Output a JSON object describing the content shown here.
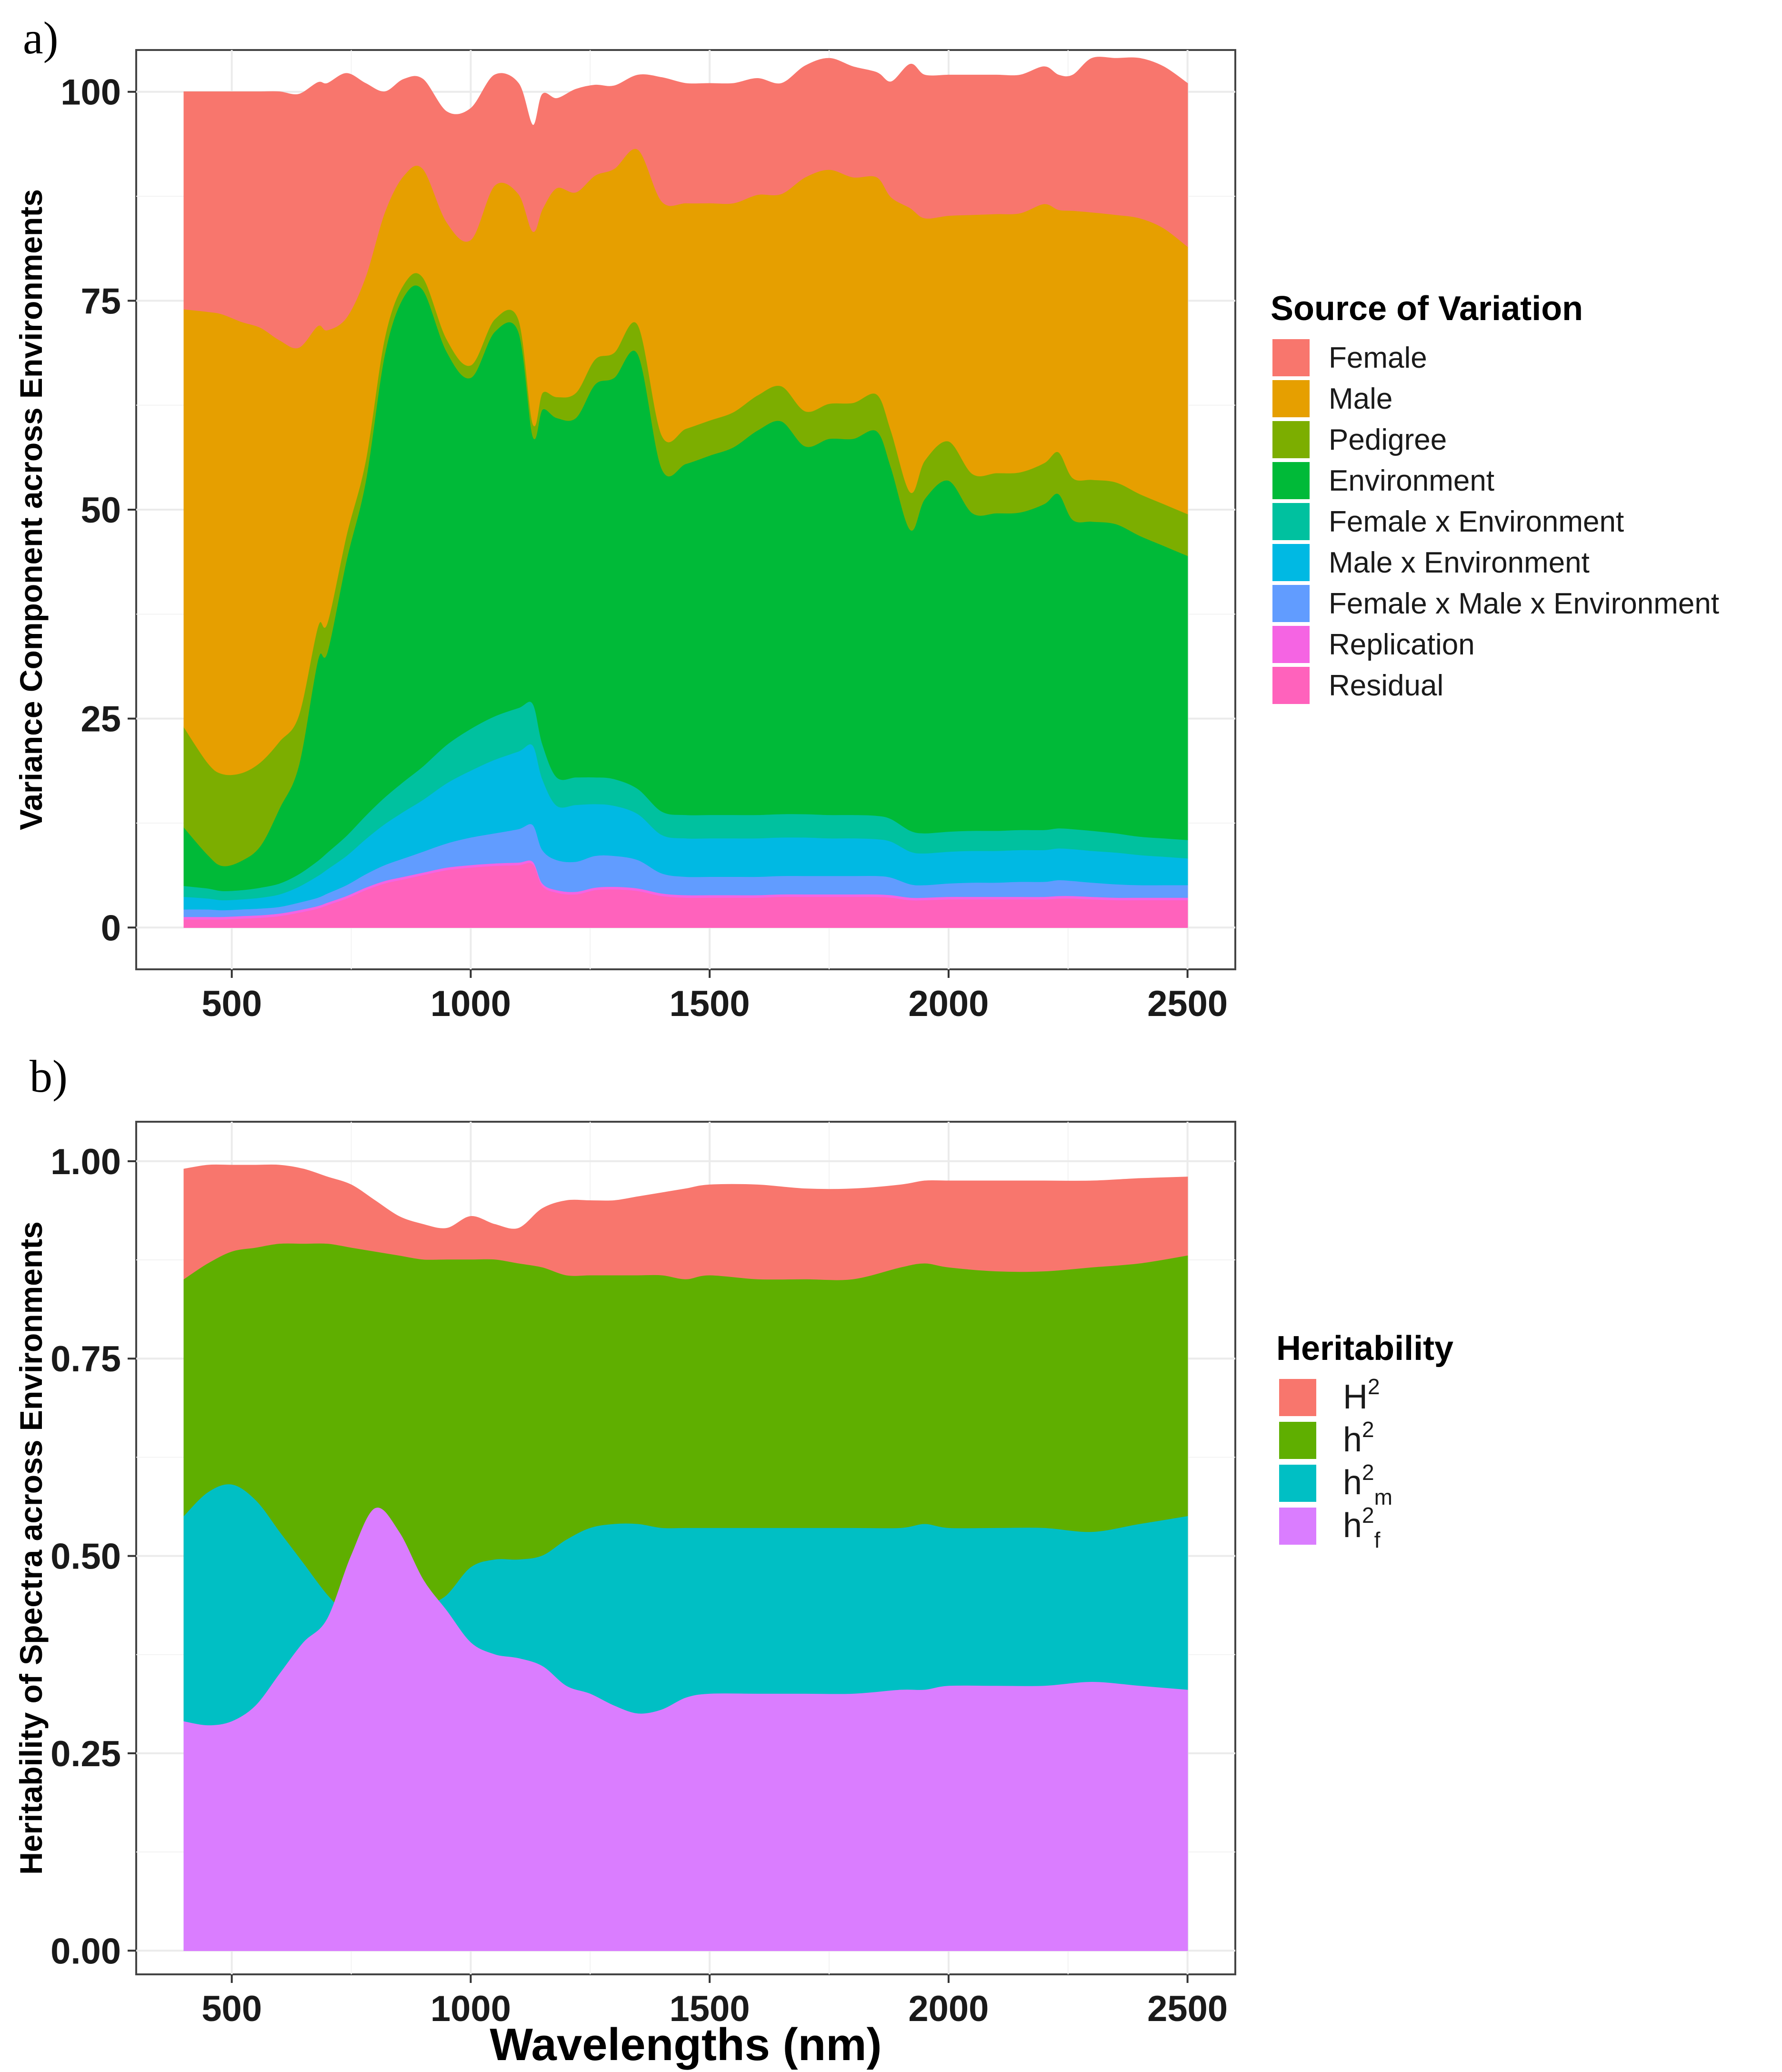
{
  "chart_data": [
    {
      "panel": "a)",
      "type": "area",
      "stacked": true,
      "xlabel": "",
      "ylabel": "Variance Component across Environments",
      "xlim": [
        300,
        2600
      ],
      "ylim": [
        -5,
        105
      ],
      "xticks": [
        500,
        1000,
        1500,
        2000,
        2500
      ],
      "yticks": [
        0,
        25,
        50,
        75,
        100
      ],
      "grid": true,
      "legend_title": "Source of Variation",
      "legend_position": "right",
      "x": [
        400,
        450,
        480,
        520,
        560,
        600,
        640,
        680,
        700,
        740,
        780,
        820,
        860,
        900,
        950,
        1000,
        1050,
        1100,
        1130,
        1150,
        1180,
        1220,
        1260,
        1300,
        1350,
        1400,
        1450,
        1500,
        1550,
        1600,
        1650,
        1700,
        1750,
        1800,
        1850,
        1880,
        1920,
        1950,
        2000,
        2050,
        2100,
        2150,
        2200,
        2230,
        2260,
        2300,
        2350,
        2400,
        2450,
        2500
      ],
      "series": [
        {
          "name": "Residual",
          "color": "#FF62BC",
          "values": [
            1,
            1,
            1,
            1.1,
            1.2,
            1.4,
            1.8,
            2.3,
            2.7,
            3.5,
            4.5,
            5.3,
            5.8,
            6.3,
            6.9,
            7.2,
            7.4,
            7.5,
            7.6,
            5,
            4.2,
            4,
            4.5,
            4.6,
            4.4,
            3.8,
            3.6,
            3.6,
            3.6,
            3.6,
            3.7,
            3.7,
            3.7,
            3.7,
            3.7,
            3.6,
            3.3,
            3.3,
            3.4,
            3.4,
            3.4,
            3.4,
            3.4,
            3.5,
            3.5,
            3.4,
            3.3,
            3.3,
            3.3,
            3.3
          ]
        },
        {
          "name": "Replication",
          "color": "#F564E3",
          "values": [
            0.3,
            0.3,
            0.3,
            0.3,
            0.3,
            0.3,
            0.3,
            0.3,
            0.3,
            0.3,
            0.3,
            0.3,
            0.3,
            0.3,
            0.3,
            0.3,
            0.3,
            0.3,
            0.3,
            0.3,
            0.3,
            0.3,
            0.3,
            0.3,
            0.3,
            0.3,
            0.3,
            0.3,
            0.3,
            0.3,
            0.3,
            0.3,
            0.3,
            0.3,
            0.3,
            0.3,
            0.3,
            0.3,
            0.3,
            0.3,
            0.3,
            0.3,
            0.3,
            0.3,
            0.3,
            0.3,
            0.3,
            0.3,
            0.3,
            0.3
          ]
        },
        {
          "name": "Female x Male x Environment",
          "color": "#619CFF",
          "values": [
            0.9,
            0.9,
            0.8,
            0.8,
            0.8,
            0.8,
            0.9,
            1,
            1.1,
            1.3,
            1.6,
            1.9,
            2.2,
            2.5,
            2.9,
            3.3,
            3.6,
            4,
            4.4,
            4,
            3.6,
            3.6,
            3.8,
            3.7,
            3.4,
            2.4,
            2.2,
            2.2,
            2.2,
            2.2,
            2.2,
            2.2,
            2.2,
            2.2,
            2.2,
            2.1,
            1.6,
            1.5,
            1.6,
            1.7,
            1.7,
            1.8,
            1.8,
            1.9,
            1.8,
            1.7,
            1.6,
            1.5,
            1.5,
            1.5
          ]
        },
        {
          "name": "Male x Environment",
          "color": "#00B9E3",
          "values": [
            1.5,
            1.3,
            1.2,
            1.2,
            1.3,
            1.5,
            1.9,
            2.6,
            2.9,
            3.5,
            4.2,
            4.9,
            5.6,
            6.2,
            7.2,
            8,
            8.8,
            9.3,
            9.5,
            8.5,
            6.5,
            6.8,
            6.2,
            6,
            5.5,
            4.6,
            4.6,
            4.6,
            4.6,
            4.6,
            4.6,
            4.6,
            4.5,
            4.5,
            4.4,
            4.3,
            3.9,
            3.8,
            3.8,
            3.8,
            3.8,
            3.8,
            3.8,
            3.8,
            3.8,
            3.8,
            3.8,
            3.6,
            3.4,
            3.2
          ]
        },
        {
          "name": "Female x Environment",
          "color": "#00C19F",
          "values": [
            1.3,
            1.2,
            1.1,
            1.1,
            1.2,
            1.3,
            1.5,
            1.8,
            2,
            2.4,
            2.8,
            3.2,
            3.6,
            4,
            4.6,
            5,
            5.2,
            5.2,
            5,
            4.2,
            3.4,
            3.3,
            3.2,
            3.2,
            3,
            2.8,
            2.8,
            2.8,
            2.8,
            2.8,
            2.8,
            2.8,
            2.8,
            2.8,
            2.8,
            2.7,
            2.5,
            2.4,
            2.4,
            2.4,
            2.4,
            2.4,
            2.4,
            2.4,
            2.4,
            2.4,
            2.3,
            2.2,
            2.2,
            2.2
          ]
        },
        {
          "name": "Environment",
          "color": "#00BA38",
          "values": [
            7,
            4,
            3,
            3.5,
            5,
            9,
            13,
            24,
            24,
            33,
            40,
            53,
            58,
            57,
            47,
            42,
            46,
            45,
            32,
            40,
            43,
            43,
            47,
            48,
            52,
            41,
            42,
            43,
            44,
            46,
            47,
            44,
            45,
            45,
            46,
            42,
            36,
            40,
            42,
            38,
            38,
            38,
            39,
            40,
            37,
            37,
            37,
            36,
            35,
            34
          ]
        },
        {
          "name": "Pedigree",
          "color": "#7CAE00",
          "values": [
            12,
            11,
            11,
            10.5,
            10,
            8,
            6,
            4,
            3.5,
            3,
            2.5,
            2,
            1.5,
            1.5,
            1.5,
            1.5,
            1.5,
            1.5,
            1.5,
            2,
            2.5,
            3,
            3,
            3,
            3.5,
            4,
            4.2,
            4.2,
            4.2,
            4.2,
            4.2,
            4.2,
            4.2,
            4.3,
            4.4,
            4.4,
            4.5,
            4.6,
            4.7,
            4.7,
            4.8,
            4.8,
            4.9,
            5,
            5,
            5,
            5,
            5,
            5,
            5
          ]
        },
        {
          "name": "Male",
          "color": "#E69F00",
          "values": [
            50,
            54,
            55,
            54,
            52,
            48,
            44,
            36,
            35,
            26,
            22,
            15,
            13,
            13,
            14,
            15,
            16,
            15,
            23,
            22,
            25,
            24,
            22,
            22,
            21,
            28,
            27,
            26,
            25,
            24,
            23,
            28,
            28,
            27,
            26,
            28,
            34,
            29,
            27,
            31,
            31,
            31,
            31,
            29,
            32,
            32,
            32,
            33,
            33,
            32
          ]
        },
        {
          "name": "Female",
          "color": "#F8766D",
          "values": [
            26,
            26.3,
            26.6,
            27.5,
            28.2,
            29.7,
            30.3,
            29.1,
            29.5,
            29.2,
            23.1,
            14.4,
            11.5,
            10.7,
            13.2,
            15.7,
            13.2,
            13.2,
            12.7,
            13.7,
            10.7,
            12.3,
            10.8,
            9.9,
            8.9,
            14.8,
            14.3,
            14.3,
            14.3,
            13.9,
            13.2,
            13.3,
            13.3,
            13.2,
            12.5,
            13.8,
            17.2,
            17.1,
            16.8,
            16.7,
            16.6,
            16.5,
            16.4,
            16.1,
            16.2,
            18.4,
            18.7,
            19.1,
            19.3,
            19.5
          ]
        }
      ]
    },
    {
      "panel": "b)",
      "type": "area",
      "stacked": false,
      "xlabel": "Wavelengths (nm)",
      "ylabel": "Heritability of Spectra across Environments",
      "xlim": [
        300,
        2600
      ],
      "ylim": [
        -0.03,
        1.05
      ],
      "xticks": [
        500,
        1000,
        1500,
        2000,
        2500
      ],
      "yticks": [
        0.0,
        0.25,
        0.5,
        0.75,
        1.0
      ],
      "ytick_labels": [
        "0.00",
        "0.25",
        "0.50",
        "0.75",
        "1.00"
      ],
      "grid": true,
      "legend_title": "Heritability",
      "legend_position": "right",
      "x": [
        400,
        450,
        500,
        550,
        600,
        650,
        700,
        750,
        800,
        850,
        900,
        950,
        1000,
        1050,
        1100,
        1150,
        1200,
        1250,
        1300,
        1350,
        1400,
        1450,
        1500,
        1600,
        1700,
        1800,
        1900,
        1950,
        2000,
        2100,
        2200,
        2300,
        2400,
        2500
      ],
      "series": [
        {
          "name": "H2",
          "label_base": "H",
          "label_sup": "2",
          "label_sub": "",
          "color": "#F8766D",
          "values": [
            0.99,
            0.995,
            0.995,
            0.995,
            0.995,
            0.99,
            0.98,
            0.97,
            0.95,
            0.93,
            0.92,
            0.915,
            0.93,
            0.92,
            0.915,
            0.94,
            0.95,
            0.95,
            0.95,
            0.955,
            0.96,
            0.965,
            0.97,
            0.97,
            0.965,
            0.965,
            0.97,
            0.975,
            0.975,
            0.975,
            0.975,
            0.975,
            0.978,
            0.98
          ]
        },
        {
          "name": "h2",
          "label_base": "h",
          "label_sup": "2",
          "label_sub": "",
          "color": "#5FAF00",
          "values": [
            0.85,
            0.87,
            0.885,
            0.89,
            0.895,
            0.895,
            0.895,
            0.89,
            0.885,
            0.88,
            0.875,
            0.875,
            0.875,
            0.875,
            0.87,
            0.865,
            0.855,
            0.855,
            0.855,
            0.855,
            0.855,
            0.85,
            0.855,
            0.85,
            0.85,
            0.85,
            0.865,
            0.87,
            0.865,
            0.86,
            0.86,
            0.865,
            0.87,
            0.88
          ]
        },
        {
          "name": "h2m",
          "label_base": "h",
          "label_sup": "2",
          "label_sub": "m",
          "color": "#00BFC4",
          "values": [
            0.55,
            0.58,
            0.59,
            0.57,
            0.53,
            0.49,
            0.45,
            0.42,
            0.4,
            0.38,
            0.43,
            0.45,
            0.485,
            0.495,
            0.495,
            0.5,
            0.52,
            0.535,
            0.54,
            0.54,
            0.535,
            0.535,
            0.535,
            0.535,
            0.535,
            0.535,
            0.535,
            0.54,
            0.535,
            0.535,
            0.535,
            0.53,
            0.54,
            0.55
          ]
        },
        {
          "name": "h2f",
          "label_base": "h",
          "label_sup": "2",
          "label_sub": "f",
          "color": "#DA7DFF",
          "values": [
            0.29,
            0.285,
            0.29,
            0.31,
            0.35,
            0.39,
            0.42,
            0.5,
            0.56,
            0.53,
            0.47,
            0.43,
            0.39,
            0.375,
            0.37,
            0.36,
            0.335,
            0.325,
            0.31,
            0.3,
            0.305,
            0.32,
            0.325,
            0.325,
            0.325,
            0.325,
            0.33,
            0.33,
            0.335,
            0.335,
            0.335,
            0.34,
            0.335,
            0.33
          ]
        }
      ]
    }
  ]
}
